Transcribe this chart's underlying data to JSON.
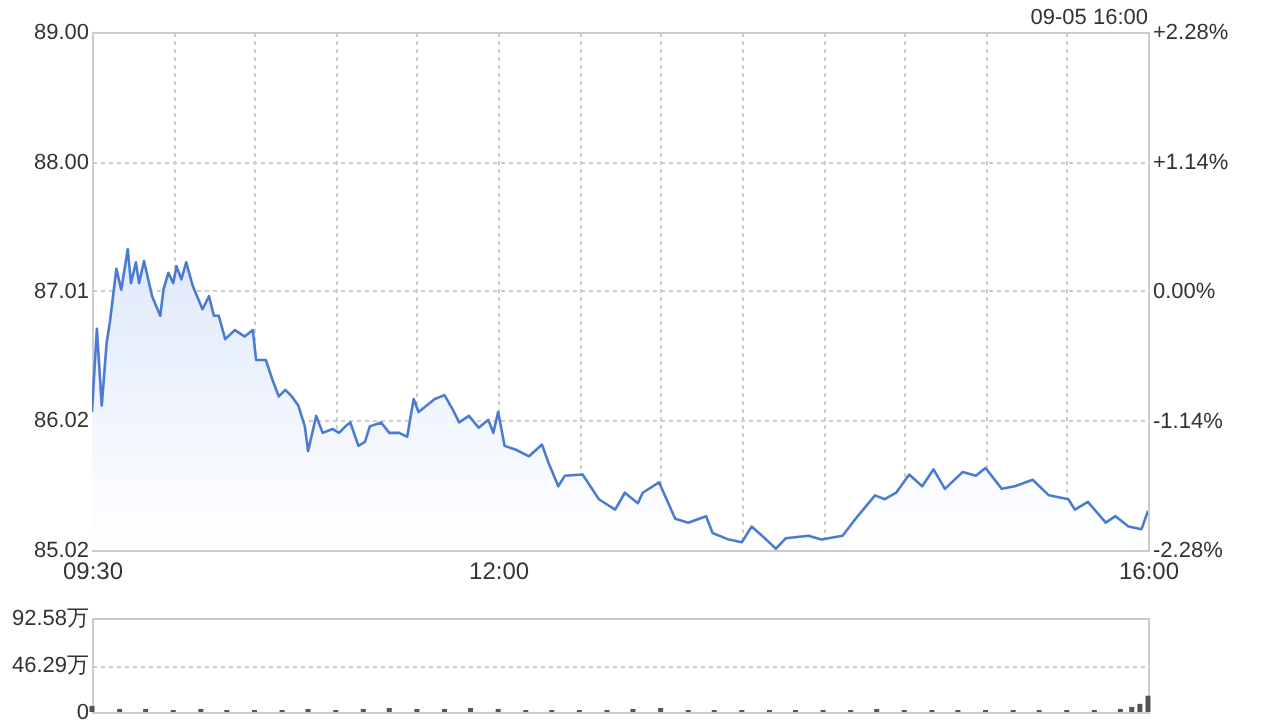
{
  "chart_data": [
    {
      "type": "area",
      "annotations": [
        "09-05 16:00"
      ],
      "xlim": [
        9.5,
        16
      ],
      "xticks": [
        {
          "value": 9.5,
          "label": "09:30"
        },
        {
          "value": 10,
          "label": null
        },
        {
          "value": 10.5,
          "label": null
        },
        {
          "value": 11,
          "label": null
        },
        {
          "value": 11.5,
          "label": null
        },
        {
          "value": 12,
          "label": "12:00"
        },
        {
          "value": 12.5,
          "label": null
        },
        {
          "value": 13,
          "label": null
        },
        {
          "value": 13.5,
          "label": null
        },
        {
          "value": 14,
          "label": null
        },
        {
          "value": 14.5,
          "label": null
        },
        {
          "value": 15,
          "label": null
        },
        {
          "value": 15.5,
          "label": null
        },
        {
          "value": 16,
          "label": "16:00"
        }
      ],
      "ylim": [
        85.02,
        89.0
      ],
      "yticks": [
        {
          "value": 85.02,
          "label": "85.02"
        },
        {
          "value": 86.02,
          "label": "86.02"
        },
        {
          "value": 87.01,
          "label": "87.01"
        },
        {
          "value": 88.0,
          "label": "88.00"
        },
        {
          "value": 89.0,
          "label": "89.00"
        }
      ],
      "y2lim": [
        -2.28,
        2.28
      ],
      "y2ticks": [
        {
          "value": -2.28,
          "label": "-2.28%"
        },
        {
          "value": -1.14,
          "label": "-1.14%"
        },
        {
          "value": 0,
          "label": "0.00%"
        },
        {
          "value": 1.14,
          "label": "+1.14%"
        },
        {
          "value": 2.28,
          "label": "+2.28%"
        }
      ],
      "grid": true,
      "line_style": "solid",
      "x": [
        9.5,
        9.53,
        9.56,
        9.59,
        9.61,
        9.65,
        9.68,
        9.72,
        9.74,
        9.77,
        9.79,
        9.82,
        9.87,
        9.92,
        9.94,
        9.97,
        10.0,
        10.02,
        10.05,
        10.08,
        10.12,
        10.18,
        10.22,
        10.25,
        10.28,
        10.32,
        10.38,
        10.44,
        10.49,
        10.51,
        10.57,
        10.61,
        10.65,
        10.69,
        10.73,
        10.77,
        10.81,
        10.83,
        10.88,
        10.92,
        10.98,
        11.02,
        11.06,
        11.09,
        11.14,
        11.18,
        11.21,
        11.28,
        11.33,
        11.39,
        11.44,
        11.48,
        11.51,
        11.56,
        11.61,
        11.67,
        11.72,
        11.76,
        11.82,
        11.88,
        11.94,
        11.97,
        12.0,
        12.04,
        12.11,
        12.19,
        12.27,
        12.31,
        12.37,
        12.41,
        12.52,
        12.62,
        12.72,
        12.78,
        12.86,
        12.89,
        12.99,
        13.09,
        13.17,
        13.28,
        13.32,
        13.42,
        13.5,
        13.56,
        13.65,
        13.71,
        13.77,
        13.91,
        13.99,
        14.12,
        14.2,
        14.32,
        14.38,
        14.45,
        14.53,
        14.61,
        14.68,
        14.75,
        14.86,
        14.94,
        15.0,
        15.1,
        15.18,
        15.29,
        15.39,
        15.51,
        15.55,
        15.63,
        15.74,
        15.8,
        15.88,
        15.96,
        16.0
      ],
      "series": [
        {
          "color": "#4a7bd0",
          "values": [
            86.08,
            86.72,
            86.13,
            86.61,
            86.77,
            87.18,
            87.02,
            87.33,
            87.07,
            87.23,
            87.07,
            87.24,
            86.97,
            86.82,
            87.02,
            87.15,
            87.07,
            87.2,
            87.1,
            87.23,
            87.05,
            86.87,
            86.97,
            86.82,
            86.82,
            86.64,
            86.71,
            86.66,
            86.71,
            86.48,
            86.48,
            86.33,
            86.2,
            86.25,
            86.2,
            86.13,
            85.97,
            85.78,
            86.05,
            85.92,
            85.95,
            85.92,
            85.97,
            86.0,
            85.82,
            85.85,
            85.97,
            86.0,
            85.92,
            85.92,
            85.89,
            86.18,
            86.08,
            86.13,
            86.18,
            86.21,
            86.1,
            86.0,
            86.05,
            85.96,
            86.02,
            85.92,
            86.08,
            85.82,
            85.79,
            85.74,
            85.83,
            85.69,
            85.51,
            85.59,
            85.6,
            85.41,
            85.33,
            85.46,
            85.38,
            85.46,
            85.54,
            85.26,
            85.23,
            85.28,
            85.15,
            85.1,
            85.08,
            85.2,
            85.1,
            85.03,
            85.11,
            85.13,
            85.1,
            85.13,
            85.26,
            85.44,
            85.41,
            85.46,
            85.6,
            85.51,
            85.64,
            85.49,
            85.62,
            85.59,
            85.65,
            85.49,
            85.51,
            85.56,
            85.44,
            85.41,
            85.33,
            85.39,
            85.23,
            85.28,
            85.2,
            85.18,
            85.32
          ]
        }
      ]
    },
    {
      "type": "bar",
      "tick_labels": "y",
      "grid": "y",
      "xlim": [
        9.5,
        16
      ],
      "ylim": [
        0,
        92.58
      ],
      "yticks": [
        0,
        {
          "value": 46.29,
          "label": "46.29万"
        },
        {
          "value": 92.58,
          "label": "92.58万"
        }
      ],
      "x": [
        9.5,
        9.67,
        9.83,
        10.0,
        10.17,
        10.33,
        10.5,
        10.67,
        10.83,
        11.0,
        11.17,
        11.33,
        11.5,
        11.67,
        11.83,
        12.0,
        12.17,
        12.33,
        12.5,
        12.67,
        12.83,
        13.0,
        13.17,
        13.33,
        13.5,
        13.67,
        13.83,
        14.0,
        14.17,
        14.33,
        14.5,
        14.67,
        14.83,
        15.0,
        15.17,
        15.33,
        15.5,
        15.67,
        15.83,
        15.9,
        15.95,
        16.0
      ],
      "series": [
        {
          "color": "#555555",
          "values": [
            6,
            3,
            3,
            2,
            3,
            2,
            2,
            2,
            3,
            2,
            3,
            4,
            3,
            3,
            4,
            3,
            2,
            2,
            2,
            2,
            3,
            4,
            2,
            2,
            2,
            2,
            2,
            2,
            2,
            3,
            2,
            2,
            2,
            2,
            2,
            2,
            2,
            2,
            3,
            5,
            8,
            16
          ]
        }
      ]
    }
  ]
}
